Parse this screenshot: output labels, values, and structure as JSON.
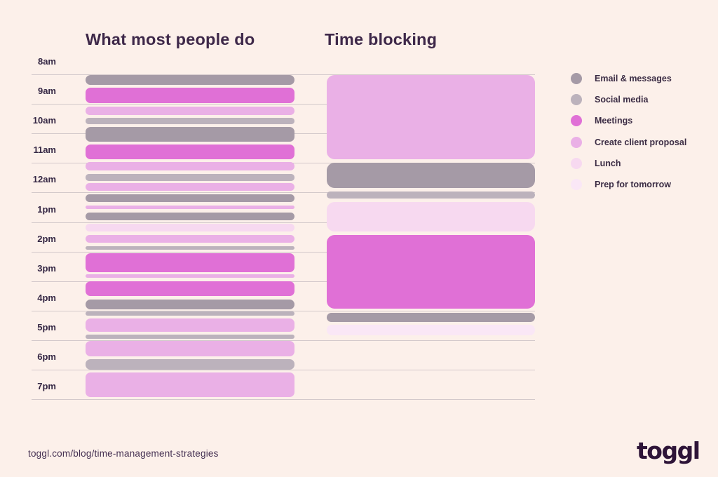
{
  "page": {
    "background": "#fcf0ea"
  },
  "titles": {
    "left": "What most people do",
    "right": "Time blocking"
  },
  "footer": {
    "url": "toggl.com/blog/time-management-strategies",
    "logo_text": "toggl"
  },
  "chart_data": {
    "type": "schedule-timeline-comparison",
    "time_labels": [
      "8am",
      "9am",
      "10am",
      "11am",
      "12am",
      "1pm",
      "2pm",
      "3pm",
      "4pm",
      "5pm",
      "6pm",
      "7pm"
    ],
    "axis": {
      "hour_start": 8,
      "hour_end": 19,
      "gridlines": true
    },
    "legend_position": "right",
    "legend": [
      {
        "label": "Email & messages",
        "color": "#a59aa6"
      },
      {
        "label": "Social media",
        "color": "#bcb2bc"
      },
      {
        "label": "Meetings",
        "color": "#e070d6"
      },
      {
        "label": "Create client proposal",
        "color": "#eab0e6"
      },
      {
        "label": "Lunch",
        "color": "#f7d9f0"
      },
      {
        "label": "Prep for tomorrow",
        "color": "#fae7f6"
      }
    ],
    "columns": [
      {
        "title": "What most people do",
        "blocks": [
          {
            "category": "Email & messages",
            "start": 8.02,
            "end": 8.36
          },
          {
            "category": "Meetings",
            "start": 8.45,
            "end": 8.98
          },
          {
            "category": "Create client proposal",
            "start": 9.1,
            "end": 9.38
          },
          {
            "category": "Social media",
            "start": 9.48,
            "end": 9.69
          },
          {
            "category": "Email & messages",
            "start": 9.79,
            "end": 10.29
          },
          {
            "category": "Meetings",
            "start": 10.38,
            "end": 10.88
          },
          {
            "category": "Create client proposal",
            "start": 10.98,
            "end": 11.26
          },
          {
            "category": "Social media",
            "start": 11.38,
            "end": 11.6
          },
          {
            "category": "Create client proposal",
            "start": 11.69,
            "end": 11.95
          },
          {
            "category": "Email & messages",
            "start": 12.07,
            "end": 12.33
          },
          {
            "category": "Create client proposal",
            "start": 12.43,
            "end": 12.57
          },
          {
            "category": "Email & messages",
            "start": 12.67,
            "end": 12.93
          },
          {
            "category": "Lunch",
            "start": 13.05,
            "end": 13.31
          },
          {
            "category": "Create client proposal",
            "start": 13.43,
            "end": 13.71
          },
          {
            "category": "Social media",
            "start": 13.81,
            "end": 13.95
          },
          {
            "category": "Meetings",
            "start": 14.05,
            "end": 14.69
          },
          {
            "category": "Create client proposal",
            "start": 14.76,
            "end": 14.9
          },
          {
            "category": "Meetings",
            "start": 15.0,
            "end": 15.5
          },
          {
            "category": "Email & messages",
            "start": 15.62,
            "end": 15.95
          },
          {
            "category": "Social media",
            "start": 16.02,
            "end": 16.17
          },
          {
            "category": "Create client proposal",
            "start": 16.26,
            "end": 16.71
          },
          {
            "category": "Social media",
            "start": 16.81,
            "end": 16.95
          },
          {
            "category": "Create client proposal",
            "start": 17.02,
            "end": 17.55
          },
          {
            "category": "Social media",
            "start": 17.64,
            "end": 18.0
          },
          {
            "category": "Create client proposal",
            "start": 18.1,
            "end": 18.93
          }
        ]
      },
      {
        "title": "Time blocking",
        "blocks": [
          {
            "category": "Create client proposal",
            "start": 8.02,
            "end": 10.88
          },
          {
            "category": "Email & messages",
            "start": 10.99,
            "end": 11.85
          },
          {
            "category": "Social media",
            "start": 11.97,
            "end": 12.2
          },
          {
            "category": "Lunch",
            "start": 12.32,
            "end": 13.32
          },
          {
            "category": "Meetings",
            "start": 13.44,
            "end": 15.93
          },
          {
            "category": "Email & messages",
            "start": 16.07,
            "end": 16.38
          },
          {
            "category": "Prep for tomorrow",
            "start": 16.48,
            "end": 16.83
          }
        ]
      }
    ]
  }
}
